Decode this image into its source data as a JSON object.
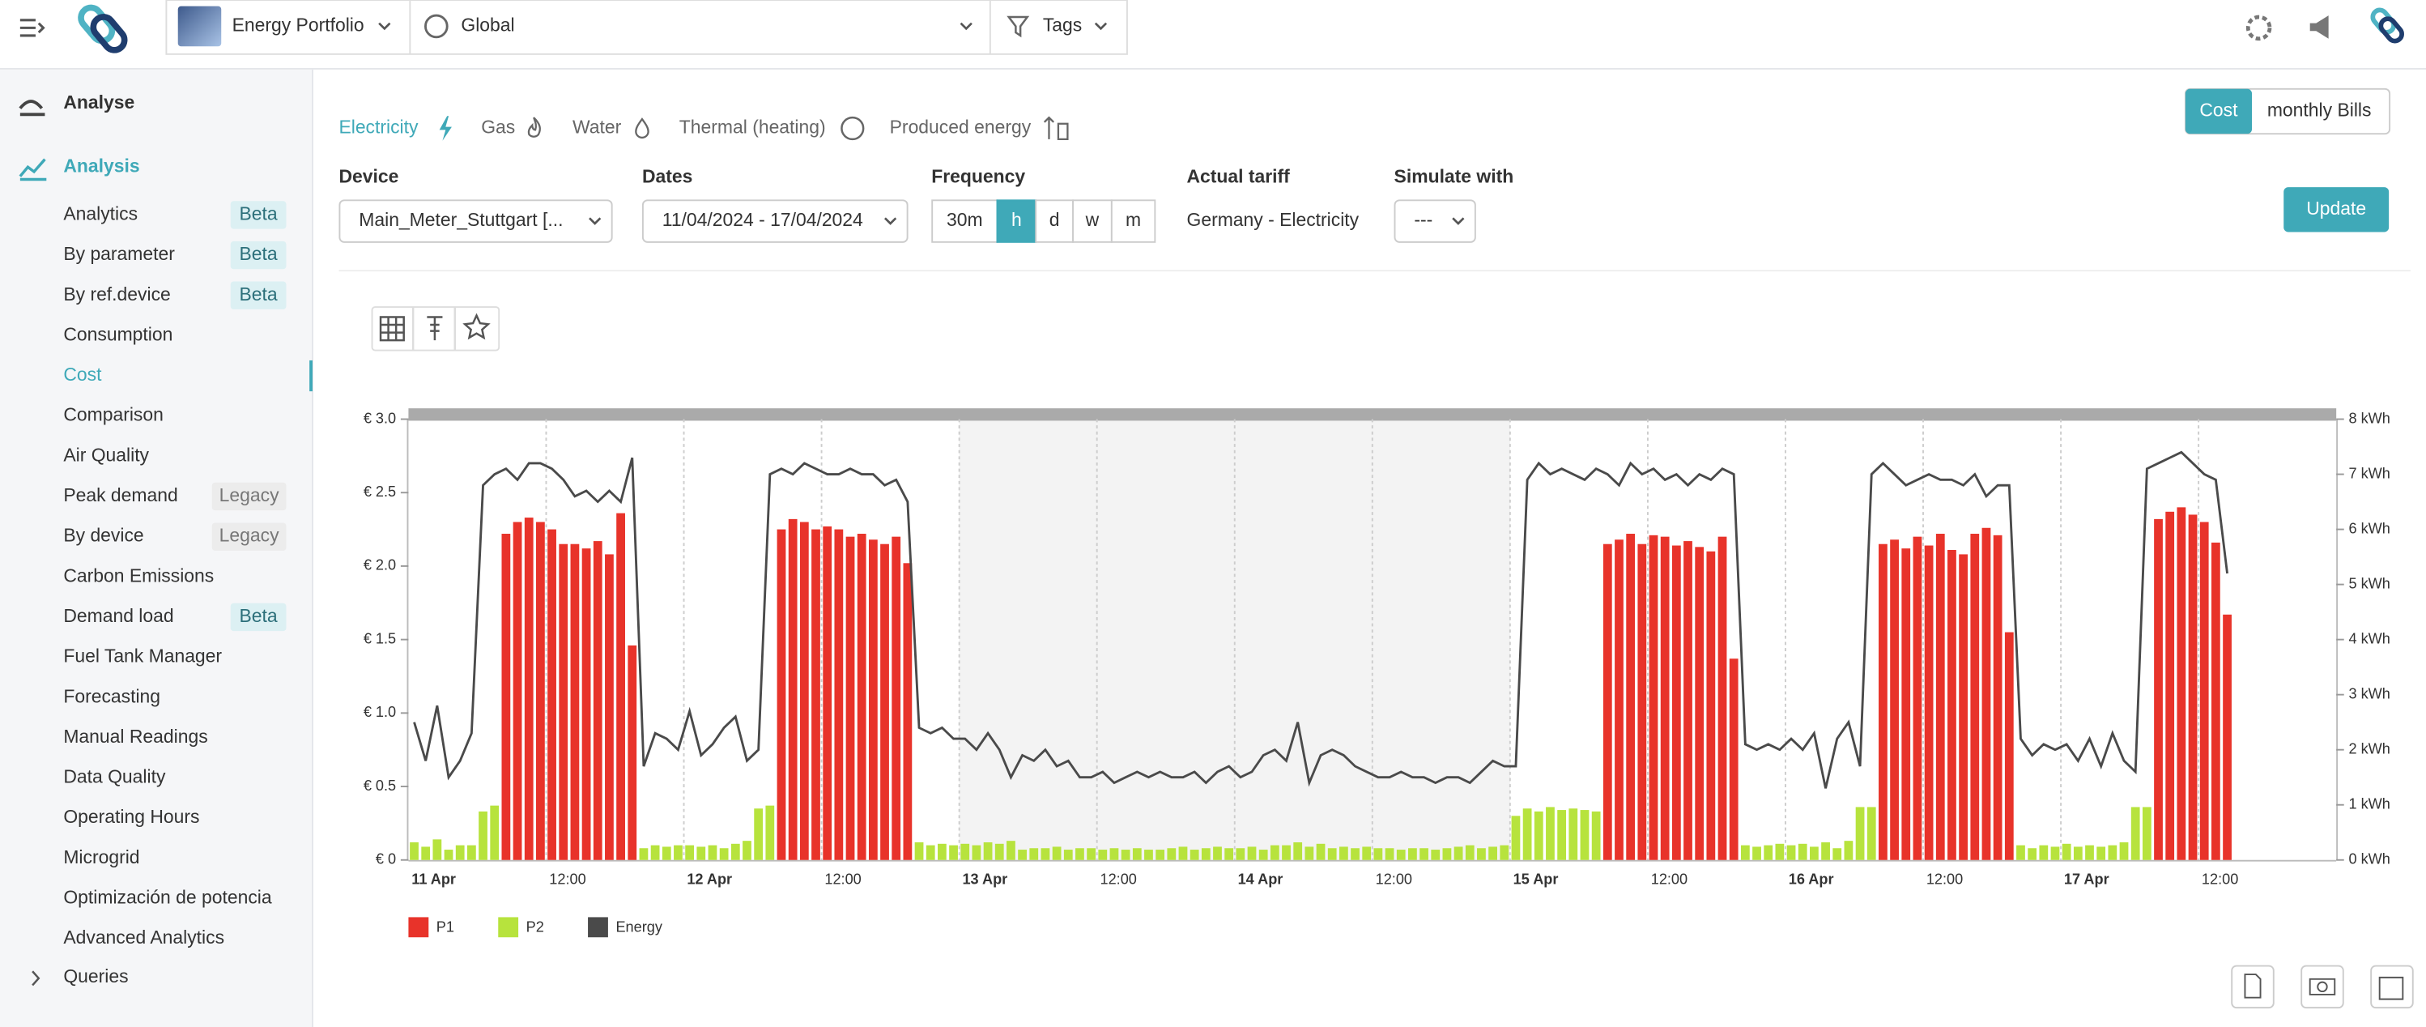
{
  "header": {
    "portfolio": "Energy Portfolio",
    "scope": "Global",
    "tags": "Tags"
  },
  "sidebar": {
    "heading": "Analyse",
    "section": "Analysis",
    "active_index": 4,
    "items": [
      {
        "label": "Analytics",
        "badge": "Beta"
      },
      {
        "label": "By parameter",
        "badge": "Beta"
      },
      {
        "label": "By ref.device",
        "badge": "Beta"
      },
      {
        "label": "Consumption"
      },
      {
        "label": "Cost"
      },
      {
        "label": "Comparison"
      },
      {
        "label": "Air Quality"
      },
      {
        "label": "Peak demand",
        "badge": "Legacy"
      },
      {
        "label": "By device",
        "badge": "Legacy"
      },
      {
        "label": "Carbon Emissions"
      },
      {
        "label": "Demand load",
        "badge": "Beta"
      },
      {
        "label": "Fuel Tank Manager"
      },
      {
        "label": "Forecasting"
      },
      {
        "label": "Manual Readings"
      },
      {
        "label": "Data Quality"
      },
      {
        "label": "Operating Hours"
      },
      {
        "label": "Microgrid"
      },
      {
        "label": "Optimización de potencia"
      },
      {
        "label": "Advanced Analytics"
      }
    ],
    "queries": "Queries"
  },
  "tabs": {
    "items": [
      "Electricity",
      "Gas",
      "Water",
      "Thermal (heating)",
      "Produced energy"
    ],
    "active_index": 0
  },
  "view_toggle": {
    "items": [
      "Cost",
      "monthly Bills"
    ],
    "active_index": 0
  },
  "form": {
    "device": {
      "label": "Device",
      "value": "Main_Meter_Stuttgart [..."
    },
    "dates": {
      "label": "Dates",
      "value": "11/04/2024 - 17/04/2024"
    },
    "frequency": {
      "label": "Frequency",
      "options": [
        "30m",
        "h",
        "d",
        "w",
        "m"
      ],
      "active_index": 1
    },
    "tariff": {
      "label": "Actual tariff",
      "value": "Germany - Electricity"
    },
    "simulate": {
      "label": "Simulate with",
      "value": "---"
    },
    "update": "Update"
  },
  "chart_data": {
    "type": "bar",
    "categories": [
      "11 Apr",
      null,
      null,
      null,
      null,
      null,
      null,
      null,
      null,
      null,
      null,
      null,
      "12:00",
      null,
      null,
      null,
      null,
      null,
      null,
      null,
      null,
      null,
      null,
      null,
      "12 Apr",
      null,
      null,
      null,
      null,
      null,
      null,
      null,
      null,
      null,
      null,
      null,
      "12:00",
      null,
      null,
      null,
      null,
      null,
      null,
      null,
      null,
      null,
      null,
      null,
      "13 Apr",
      null,
      null,
      null,
      null,
      null,
      null,
      null,
      null,
      null,
      null,
      null,
      "12:00",
      null,
      null,
      null,
      null,
      null,
      null,
      null,
      null,
      null,
      null,
      null,
      "14 Apr",
      null,
      null,
      null,
      null,
      null,
      null,
      null,
      null,
      null,
      null,
      null,
      "12:00",
      null,
      null,
      null,
      null,
      null,
      null,
      null,
      null,
      null,
      null,
      null,
      "15 Apr",
      null,
      null,
      null,
      null,
      null,
      null,
      null,
      null,
      null,
      null,
      null,
      "12:00",
      null,
      null,
      null,
      null,
      null,
      null,
      null,
      null,
      null,
      null,
      null,
      "16 Apr",
      null,
      null,
      null,
      null,
      null,
      null,
      null,
      null,
      null,
      null,
      null,
      "12:00",
      null,
      null,
      null,
      null,
      null,
      null,
      null,
      null,
      null,
      null,
      null,
      "17 Apr",
      null,
      null,
      null,
      null,
      null,
      null,
      null,
      null,
      null,
      null,
      null,
      "12:00",
      null,
      null,
      null,
      null,
      null,
      null,
      null,
      null,
      null,
      null,
      null
    ],
    "shaded": {
      "from": 48,
      "to": 96
    },
    "ylim": [
      0,
      3
    ],
    "yticks": [
      {
        "value": 0,
        "label": "€ 0"
      },
      {
        "value": 0.5,
        "label": "€ 0.5"
      },
      {
        "value": 1,
        "label": "€ 1.0"
      },
      {
        "value": 1.5,
        "label": "€ 1.5"
      },
      {
        "value": 2,
        "label": "€ 2.0"
      },
      {
        "value": 2.5,
        "label": "€ 2.5"
      },
      {
        "value": 3,
        "label": "€ 3.0"
      }
    ],
    "y2lim": [
      0,
      8
    ],
    "y2ticks": [
      {
        "value": 0,
        "label": "0 kWh"
      },
      {
        "value": 1,
        "label": "1 kWh"
      },
      {
        "value": 2,
        "label": "2 kWh"
      },
      {
        "value": 3,
        "label": "3 kWh"
      },
      {
        "value": 4,
        "label": "4 kWh"
      },
      {
        "value": 5,
        "label": "5 kWh"
      },
      {
        "value": 6,
        "label": "6 kWh"
      },
      {
        "value": 7,
        "label": "7 kWh"
      },
      {
        "value": 8,
        "label": "8 kWh"
      }
    ],
    "legend": "bottom-left",
    "series": [
      {
        "name": "P1",
        "color": "#e8332a",
        "type": "bar",
        "values": [
          null,
          null,
          null,
          null,
          null,
          null,
          null,
          null,
          2.22,
          2.3,
          2.33,
          2.3,
          2.25,
          2.15,
          2.15,
          2.12,
          2.17,
          2.08,
          2.36,
          1.46,
          null,
          null,
          null,
          null,
          null,
          null,
          null,
          null,
          null,
          null,
          null,
          null,
          2.25,
          2.32,
          2.3,
          2.25,
          2.27,
          2.25,
          2.2,
          2.22,
          2.18,
          2.15,
          2.2,
          2.02,
          null,
          null,
          null,
          null,
          null,
          null,
          null,
          null,
          null,
          null,
          null,
          null,
          null,
          null,
          null,
          null,
          null,
          null,
          null,
          null,
          null,
          null,
          null,
          null,
          null,
          null,
          null,
          null,
          null,
          null,
          null,
          null,
          null,
          null,
          null,
          null,
          null,
          null,
          null,
          null,
          null,
          null,
          null,
          null,
          null,
          null,
          null,
          null,
          null,
          null,
          null,
          null,
          null,
          null,
          null,
          null,
          null,
          null,
          null,
          null,
          2.15,
          2.18,
          2.22,
          2.15,
          2.21,
          2.2,
          2.14,
          2.17,
          2.13,
          2.1,
          2.2,
          1.37,
          null,
          null,
          null,
          null,
          null,
          null,
          null,
          null,
          null,
          null,
          null,
          null,
          2.15,
          2.18,
          2.12,
          2.2,
          2.14,
          2.22,
          2.11,
          2.08,
          2.22,
          2.26,
          2.21,
          1.55,
          null,
          null,
          null,
          null,
          null,
          null,
          null,
          null,
          null,
          null,
          null,
          null,
          2.32,
          2.37,
          2.4,
          2.35,
          2.3,
          2.16,
          1.67,
          null,
          null,
          null,
          null,
          null,
          null,
          null,
          null,
          null
        ]
      },
      {
        "name": "P2",
        "color": "#b7e33d",
        "type": "bar",
        "values": [
          0.12,
          0.09,
          0.14,
          0.07,
          0.1,
          0.1,
          0.33,
          0.37,
          null,
          null,
          null,
          null,
          null,
          null,
          null,
          null,
          null,
          null,
          null,
          null,
          0.08,
          0.1,
          0.09,
          0.1,
          0.1,
          0.09,
          0.1,
          0.08,
          0.11,
          0.13,
          0.35,
          0.37,
          null,
          null,
          null,
          null,
          null,
          null,
          null,
          null,
          null,
          null,
          null,
          null,
          0.12,
          0.1,
          0.11,
          0.1,
          0.11,
          0.1,
          0.12,
          0.11,
          0.13,
          0.07,
          0.08,
          0.08,
          0.09,
          0.07,
          0.08,
          0.08,
          0.07,
          0.08,
          0.07,
          0.08,
          0.07,
          0.07,
          0.08,
          0.09,
          0.07,
          0.08,
          0.09,
          0.08,
          0.08,
          0.09,
          0.07,
          0.1,
          0.1,
          0.12,
          0.09,
          0.11,
          0.08,
          0.09,
          0.08,
          0.09,
          0.08,
          0.08,
          0.07,
          0.08,
          0.08,
          0.07,
          0.08,
          0.09,
          0.1,
          0.08,
          0.09,
          0.1,
          0.3,
          0.35,
          0.33,
          0.36,
          0.34,
          0.35,
          0.34,
          0.33,
          null,
          null,
          null,
          null,
          null,
          null,
          null,
          null,
          null,
          null,
          null,
          null,
          0.1,
          0.09,
          0.1,
          0.11,
          0.1,
          0.11,
          0.09,
          0.12,
          0.08,
          0.13,
          0.36,
          0.36,
          null,
          null,
          null,
          null,
          null,
          null,
          null,
          null,
          null,
          null,
          null,
          null,
          0.1,
          0.08,
          0.1,
          0.09,
          0.11,
          0.09,
          0.1,
          0.09,
          0.1,
          0.12,
          0.36,
          0.36,
          null,
          null,
          null,
          null,
          null,
          null,
          null,
          null,
          null,
          null,
          null,
          null,
          null,
          null,
          null,
          null
        ]
      },
      {
        "name": "Energy",
        "color": "#4a4a4a",
        "type": "line",
        "axis": "y2",
        "values": [
          2.5,
          1.8,
          2.8,
          1.5,
          1.8,
          2.3,
          6.8,
          7.0,
          7.1,
          6.9,
          7.2,
          7.2,
          7.1,
          6.9,
          6.6,
          6.7,
          6.5,
          6.7,
          6.5,
          7.3,
          1.7,
          2.3,
          2.2,
          2.0,
          2.7,
          1.9,
          2.1,
          2.4,
          2.6,
          1.8,
          2.0,
          7.0,
          7.1,
          7.0,
          7.2,
          7.1,
          7.0,
          7.0,
          7.1,
          7.0,
          7.0,
          6.8,
          6.9,
          6.5,
          2.4,
          2.3,
          2.4,
          2.2,
          2.2,
          2.0,
          2.3,
          2.0,
          1.5,
          1.9,
          1.8,
          2.0,
          1.7,
          1.8,
          1.5,
          1.5,
          1.6,
          1.4,
          1.5,
          1.6,
          1.5,
          1.6,
          1.5,
          1.5,
          1.6,
          1.4,
          1.6,
          1.7,
          1.5,
          1.6,
          1.9,
          2.0,
          1.8,
          2.5,
          1.4,
          1.9,
          2.0,
          1.9,
          1.7,
          1.6,
          1.5,
          1.5,
          1.6,
          1.5,
          1.5,
          1.4,
          1.5,
          1.5,
          1.4,
          1.6,
          1.8,
          1.7,
          1.7,
          6.9,
          7.2,
          7.0,
          7.1,
          7.0,
          6.9,
          7.1,
          7.0,
          6.8,
          7.2,
          7.0,
          7.1,
          6.9,
          7.0,
          6.8,
          7.0,
          6.9,
          7.1,
          7.0,
          2.1,
          2.0,
          2.1,
          2.0,
          2.2,
          2.0,
          2.3,
          1.3,
          2.2,
          2.5,
          1.7,
          7.0,
          7.2,
          7.0,
          6.8,
          6.9,
          7.0,
          6.9,
          6.9,
          6.8,
          7.0,
          6.6,
          6.8,
          6.8,
          2.2,
          1.9,
          2.1,
          2.0,
          2.1,
          1.8,
          2.2,
          1.7,
          2.3,
          1.8,
          1.6,
          7.1,
          7.2,
          7.3,
          7.4,
          7.2,
          7.0,
          6.9,
          5.2,
          null,
          null,
          null,
          null,
          null,
          null,
          null,
          null,
          null
        ]
      }
    ]
  }
}
